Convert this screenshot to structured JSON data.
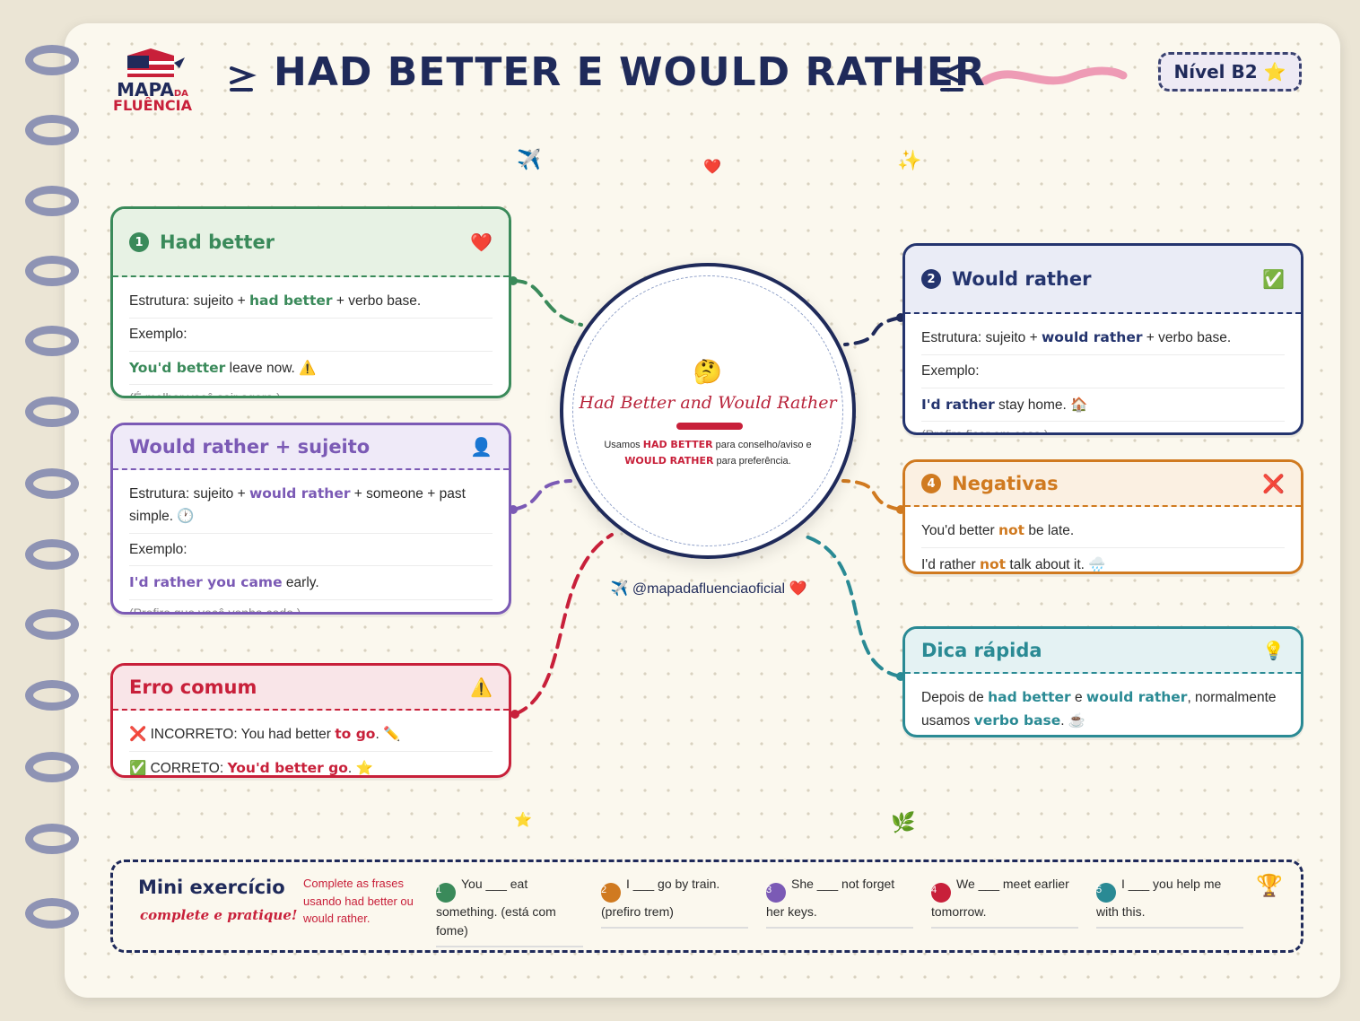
{
  "header": {
    "logo_top": "MAPA",
    "logo_da": "DA",
    "logo_bottom": "FLUÊNCIA",
    "title": "HAD BETTER E WOULD RATHER",
    "level": "Nível B2 ⭐"
  },
  "decorations": [
    "✈️",
    "❤️",
    "✨",
    "⭐",
    "🌿"
  ],
  "center": {
    "emoji": "🤔",
    "title": "Had Better and Would Rather",
    "text": [
      "Usamos ",
      {
        "em": "HAD BETTER"
      },
      " para conselho/aviso e ",
      {
        "em": "WOULD RATHER"
      },
      " para preferência."
    ],
    "handle": "✈️ @mapadafluenciaoficial ❤️"
  },
  "cards": [
    {
      "number": "1",
      "title": "Had better",
      "icon": "❤️",
      "lines": [
        [
          "Estrutura: sujeito + ",
          {
            "em": "had better"
          },
          " + verbo base."
        ],
        [
          "Exemplo:"
        ],
        [
          {
            "em": "You'd better"
          },
          " leave now. ⚠️"
        ]
      ],
      "translation": "(É melhor você sair agora.)"
    },
    {
      "number": "2",
      "title": "Would rather",
      "icon": "✅",
      "lines": [
        [
          "Estrutura: sujeito + ",
          {
            "em": "would rather"
          },
          " + verbo base."
        ],
        [
          "Exemplo:"
        ],
        [
          {
            "em": "I'd rather"
          },
          " stay home. 🏠"
        ]
      ],
      "translation": "(Prefiro ficar em casa.)"
    },
    {
      "title": "Would rather + sujeito",
      "icon": "👤",
      "lines": [
        [
          "Estrutura: sujeito + ",
          {
            "em": "would rather"
          },
          " + someone + past simple. 🕐"
        ],
        [
          "Exemplo:"
        ],
        [
          {
            "em": "I'd rather you came"
          },
          " early."
        ]
      ],
      "translation": "(Prefiro que você venha cedo.)"
    },
    {
      "number": "4",
      "title": "Negativas",
      "icon": "❌",
      "lines": [
        [
          "You'd better ",
          {
            "em": "not"
          },
          " be late."
        ],
        [
          "I'd rather ",
          {
            "em": "not"
          },
          " talk about it. 🌧️"
        ]
      ]
    },
    {
      "title": "Erro comum",
      "icon": "⚠️",
      "lines": [
        [
          "❌ INCORRETO: You had better ",
          {
            "em": "to go"
          },
          ". ✏️"
        ],
        [
          "✅ CORRETO: ",
          {
            "em": "You'd better go"
          },
          ". ⭐"
        ]
      ]
    },
    {
      "title": "Dica rápida",
      "icon": "💡",
      "lines": [
        [
          "Depois de ",
          {
            "em": "had better"
          },
          " e ",
          {
            "em": "would rather"
          },
          ", normalmente usamos ",
          {
            "em": "verbo base"
          },
          ". ☕"
        ]
      ]
    }
  ],
  "exercise": {
    "title": "Mini exercício",
    "subtitle": "complete e pratique!",
    "instructions": "Complete as frases usando had better ou would rather.",
    "items": [
      {
        "number": "1",
        "text": "You ___ eat something. (está com fome)"
      },
      {
        "number": "2",
        "text": "I ___ go by train. (prefiro trem)"
      },
      {
        "number": "3",
        "text": "She ___ not forget her keys."
      },
      {
        "number": "4",
        "text": "We ___ meet earlier tomorrow."
      },
      {
        "number": "5",
        "text": "I ___ you help me with this."
      }
    ],
    "trophy": "🏆"
  }
}
